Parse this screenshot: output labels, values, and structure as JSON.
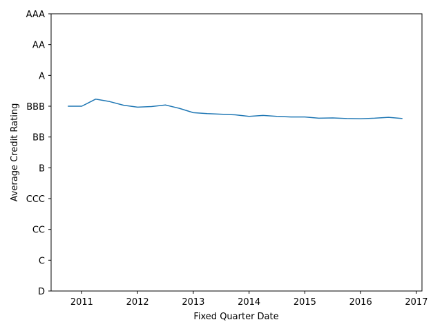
{
  "chart_data": {
    "type": "line",
    "title": "",
    "xlabel": "Fixed Quarter Date",
    "ylabel": "Average Credit Rating",
    "xlim": [
      2010.45,
      2017.1
    ],
    "ylim": [
      0,
      9
    ],
    "x_ticks": [
      {
        "value": 2011,
        "label": "2011"
      },
      {
        "value": 2012,
        "label": "2012"
      },
      {
        "value": 2013,
        "label": "2013"
      },
      {
        "value": 2014,
        "label": "2014"
      },
      {
        "value": 2015,
        "label": "2015"
      },
      {
        "value": 2016,
        "label": "2016"
      },
      {
        "value": 2017,
        "label": "2017"
      }
    ],
    "y_ticks": [
      {
        "value": 0,
        "label": "D"
      },
      {
        "value": 1,
        "label": "C"
      },
      {
        "value": 2,
        "label": "CC"
      },
      {
        "value": 3,
        "label": "CCC"
      },
      {
        "value": 4,
        "label": "B"
      },
      {
        "value": 5,
        "label": "BB"
      },
      {
        "value": 6,
        "label": "BBB"
      },
      {
        "value": 7,
        "label": "A"
      },
      {
        "value": 8,
        "label": "AA"
      },
      {
        "value": 9,
        "label": "AAA"
      }
    ],
    "grid": false,
    "legend": "none",
    "series": [
      {
        "color": "#1f77b4",
        "x": [
          2010.75,
          2011.0,
          2011.25,
          2011.5,
          2011.75,
          2012.0,
          2012.25,
          2012.5,
          2012.75,
          2013.0,
          2013.25,
          2013.5,
          2013.75,
          2014.0,
          2014.25,
          2014.5,
          2014.75,
          2015.0,
          2015.25,
          2015.5,
          2015.75,
          2016.0,
          2016.25,
          2016.5,
          2016.75
        ],
        "y": [
          6.0,
          6.0,
          6.23,
          6.15,
          6.03,
          5.97,
          5.99,
          6.04,
          5.93,
          5.79,
          5.76,
          5.74,
          5.72,
          5.67,
          5.7,
          5.67,
          5.65,
          5.65,
          5.61,
          5.62,
          5.6,
          5.59,
          5.61,
          5.64,
          5.6
        ]
      }
    ]
  }
}
